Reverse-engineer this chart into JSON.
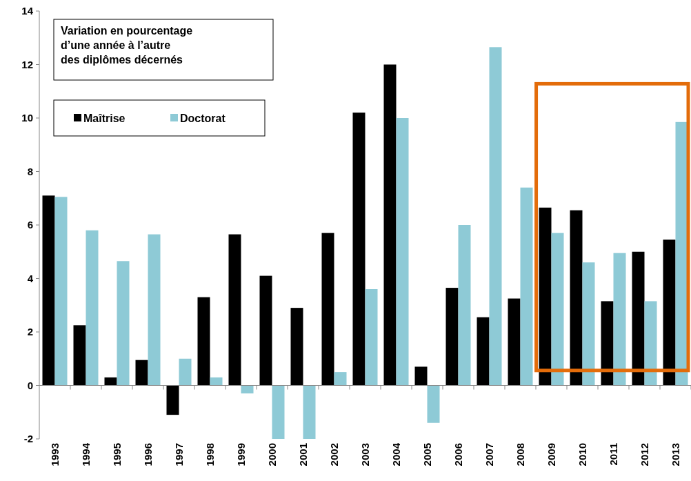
{
  "chart_data": {
    "type": "bar",
    "title": "Variation en pourcentage\nd’une année à l’autre\ndes diplômes décernés",
    "categories": [
      "1993",
      "1994",
      "1995",
      "1996",
      "1997",
      "1998",
      "1999",
      "2000",
      "2001",
      "2002",
      "2003",
      "2004",
      "2005",
      "2006",
      "2007",
      "2008",
      "2009",
      "2010",
      "2011",
      "2012",
      "2013"
    ],
    "series": [
      {
        "name": "Maîtrise",
        "color": "#000000",
        "values": [
          7.1,
          2.25,
          0.3,
          0.95,
          -1.1,
          3.3,
          5.65,
          4.1,
          2.9,
          5.7,
          10.2,
          12.0,
          0.7,
          3.65,
          2.55,
          3.25,
          6.65,
          6.55,
          3.15,
          5.0,
          5.45
        ]
      },
      {
        "name": "Doctorat",
        "color": "#8ecad6",
        "values": [
          7.05,
          5.8,
          4.65,
          5.65,
          1.0,
          0.3,
          -0.3,
          -2.0,
          -2.0,
          0.5,
          3.6,
          10.0,
          -1.4,
          6.0,
          12.65,
          7.4,
          5.7,
          4.6,
          4.95,
          3.15,
          9.85
        ]
      }
    ],
    "ylim": [
      -2,
      14
    ],
    "yticks": [
      -2,
      0,
      2,
      4,
      6,
      8,
      10,
      12,
      14
    ],
    "legend": "top left"
  }
}
